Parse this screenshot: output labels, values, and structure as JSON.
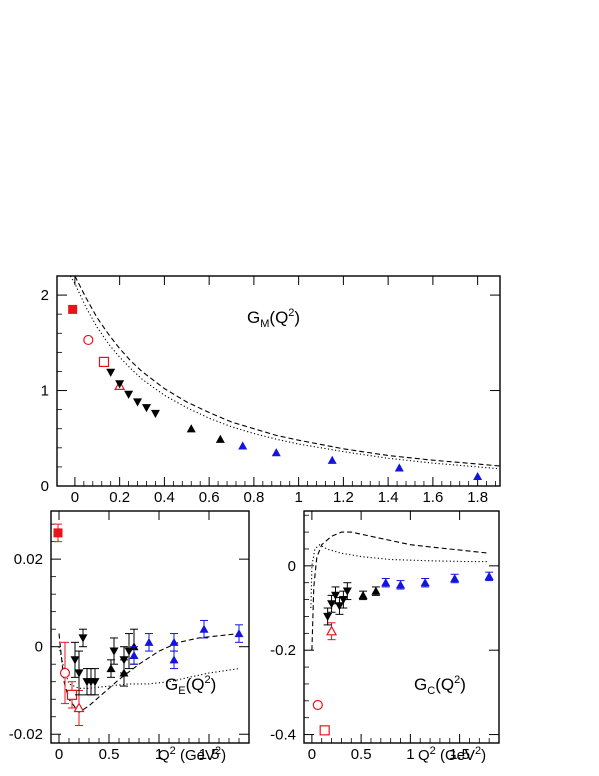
{
  "colors": {
    "black": "#000000",
    "red": "#e8141c",
    "blue": "#1414e0"
  },
  "chart_data": [
    {
      "type": "scatter",
      "title": "",
      "annotation": {
        "main": "G",
        "sub": "M",
        "rest": "(Q",
        "sup": "2",
        "end": ")"
      },
      "xlim": [
        -0.08,
        1.9
      ],
      "ylim": [
        0,
        2.2
      ],
      "xticks": [
        0,
        0.2,
        0.4,
        0.6,
        0.8,
        1,
        1.2,
        1.4,
        1.6,
        1.8
      ],
      "xtick_labels": [
        "0",
        "0.2",
        "0.4",
        "0.6",
        "0.8",
        "1",
        "1.2",
        "1.4",
        "1.6",
        "1.8"
      ],
      "yticks": [
        0,
        1,
        2
      ],
      "ytick_labels": [
        "0",
        "1",
        "2"
      ],
      "series": [
        {
          "marker": "square-filled",
          "color": "red",
          "points": [
            [
              -0.01,
              1.85
            ]
          ]
        },
        {
          "marker": "circle-open",
          "color": "red",
          "points": [
            [
              0.06,
              1.53
            ]
          ]
        },
        {
          "marker": "square-open",
          "color": "red",
          "points": [
            [
              0.13,
              1.3
            ]
          ]
        },
        {
          "marker": "triangle-up-open",
          "color": "red",
          "points": [
            [
              0.2,
              1.05
            ]
          ]
        },
        {
          "marker": "triangle-down-filled",
          "color": "black",
          "points": [
            [
              0.16,
              1.19
            ],
            [
              0.2,
              1.07
            ],
            [
              0.24,
              0.96
            ],
            [
              0.28,
              0.88
            ],
            [
              0.32,
              0.82
            ],
            [
              0.36,
              0.76
            ]
          ]
        },
        {
          "marker": "triangle-up-filled",
          "color": "black",
          "points": [
            [
              0.52,
              0.6
            ],
            [
              0.65,
              0.49
            ]
          ]
        },
        {
          "marker": "triangle-up-filled",
          "color": "blue",
          "points": [
            [
              0.75,
              0.42
            ],
            [
              0.9,
              0.35
            ],
            [
              1.15,
              0.27
            ],
            [
              1.45,
              0.19
            ],
            [
              1.8,
              0.1
            ]
          ]
        }
      ],
      "curves": [
        {
          "style": "dashed",
          "points": [
            [
              0.0,
              2.2
            ],
            [
              0.05,
              1.97
            ],
            [
              0.1,
              1.76
            ],
            [
              0.15,
              1.59
            ],
            [
              0.2,
              1.44
            ],
            [
              0.25,
              1.31
            ],
            [
              0.3,
              1.2
            ],
            [
              0.4,
              1.02
            ],
            [
              0.5,
              0.88
            ],
            [
              0.6,
              0.77
            ],
            [
              0.7,
              0.67
            ],
            [
              0.8,
              0.6
            ],
            [
              0.9,
              0.53
            ],
            [
              1.0,
              0.48
            ],
            [
              1.2,
              0.39
            ],
            [
              1.4,
              0.32
            ],
            [
              1.6,
              0.27
            ],
            [
              1.8,
              0.23
            ],
            [
              1.9,
              0.21
            ]
          ]
        },
        {
          "style": "dotted",
          "points": [
            [
              -0.02,
              2.2
            ],
            [
              0.0,
              2.12
            ],
            [
              0.05,
              1.87
            ],
            [
              0.1,
              1.66
            ],
            [
              0.15,
              1.49
            ],
            [
              0.2,
              1.35
            ],
            [
              0.25,
              1.23
            ],
            [
              0.3,
              1.12
            ],
            [
              0.4,
              0.95
            ],
            [
              0.5,
              0.82
            ],
            [
              0.6,
              0.71
            ],
            [
              0.7,
              0.62
            ],
            [
              0.8,
              0.55
            ],
            [
              0.9,
              0.49
            ],
            [
              1.0,
              0.44
            ],
            [
              1.2,
              0.36
            ],
            [
              1.4,
              0.29
            ],
            [
              1.6,
              0.24
            ],
            [
              1.8,
              0.2
            ],
            [
              1.9,
              0.18
            ]
          ]
        }
      ]
    },
    {
      "type": "scatter",
      "title": "",
      "annotation": {
        "main": "G",
        "sub": "E",
        "rest": "(Q",
        "sup": "2",
        "end": ")"
      },
      "xlabel": {
        "main": "Q",
        "sup": "2",
        "rest": " (GeV",
        "sup2": "2",
        "end": ")"
      },
      "xlim": [
        -0.08,
        1.9
      ],
      "ylim": [
        -0.022,
        0.031
      ],
      "xticks": [
        0,
        0.5,
        1,
        1.5
      ],
      "xtick_labels": [
        "0",
        "0.5",
        "1",
        "1.5"
      ],
      "yticks": [
        -0.02,
        0,
        0.02
      ],
      "ytick_labels": [
        "-0.02",
        "0",
        "0.02"
      ],
      "series": [
        {
          "marker": "square-filled",
          "color": "red",
          "points": [
            [
              -0.01,
              0.026,
              0.002
            ]
          ]
        },
        {
          "marker": "circle-open",
          "color": "red",
          "points": [
            [
              0.06,
              -0.006,
              0.007
            ]
          ]
        },
        {
          "marker": "square-open",
          "color": "red",
          "points": [
            [
              0.13,
              -0.011,
              0.003
            ]
          ]
        },
        {
          "marker": "triangle-up-open",
          "color": "red",
          "points": [
            [
              0.2,
              -0.014,
              0.004
            ]
          ]
        },
        {
          "marker": "triangle-down-filled",
          "color": "black",
          "points": [
            [
              0.16,
              -0.003,
              0.004
            ],
            [
              0.2,
              -0.006,
              0.005
            ],
            [
              0.24,
              0.002,
              0.002
            ],
            [
              0.28,
              -0.008,
              0.003
            ],
            [
              0.32,
              -0.008,
              0.003
            ],
            [
              0.36,
              -0.008,
              0.003
            ],
            [
              0.55,
              -0.001,
              0.003
            ],
            [
              0.65,
              -0.003,
              0.003
            ],
            [
              0.7,
              -0.001,
              0.004
            ]
          ]
        },
        {
          "marker": "triangle-up-filled",
          "color": "black",
          "points": [
            [
              0.52,
              -0.005,
              0.002
            ],
            [
              0.65,
              -0.006,
              0.003
            ],
            [
              0.75,
              0.0,
              0.004
            ]
          ]
        },
        {
          "marker": "triangle-up-filled",
          "color": "blue",
          "points": [
            [
              0.75,
              -0.002,
              0.002
            ],
            [
              0.9,
              0.001,
              0.002
            ],
            [
              1.15,
              -0.003,
              0.002
            ],
            [
              1.15,
              0.001,
              0.002
            ],
            [
              1.45,
              0.004,
              0.002
            ],
            [
              1.8,
              0.003,
              0.002
            ]
          ]
        }
      ],
      "curves": [
        {
          "style": "dashed",
          "points": [
            [
              0.0,
              0.003
            ],
            [
              0.05,
              -0.008
            ],
            [
              0.1,
              -0.012
            ],
            [
              0.2,
              -0.015
            ],
            [
              0.3,
              -0.0135
            ],
            [
              0.4,
              -0.0115
            ],
            [
              0.5,
              -0.0095
            ],
            [
              0.6,
              -0.0075
            ],
            [
              0.8,
              -0.004
            ],
            [
              1.0,
              -0.001
            ],
            [
              1.2,
              0.001
            ],
            [
              1.4,
              0.002
            ],
            [
              1.6,
              0.0025
            ],
            [
              1.8,
              0.003
            ]
          ]
        },
        {
          "style": "dotted",
          "points": [
            [
              0.0,
              0.0
            ],
            [
              0.05,
              -0.005
            ],
            [
              0.1,
              -0.0085
            ],
            [
              0.2,
              -0.0095
            ],
            [
              0.3,
              -0.0095
            ],
            [
              0.5,
              -0.009
            ],
            [
              0.7,
              -0.0085
            ],
            [
              0.9,
              -0.0085
            ],
            [
              1.1,
              -0.008
            ],
            [
              1.3,
              -0.007
            ],
            [
              1.5,
              -0.006
            ],
            [
              1.8,
              -0.005
            ]
          ]
        }
      ]
    },
    {
      "type": "scatter",
      "title": "",
      "annotation": {
        "main": "G",
        "sub": "C",
        "rest": "(Q",
        "sup": "2",
        "end": ")"
      },
      "xlabel": {
        "main": "Q",
        "sup": "2",
        "rest": " (GeV",
        "sup2": "2",
        "end": ")"
      },
      "xlim": [
        -0.08,
        1.9
      ],
      "ylim": [
        -0.42,
        0.13
      ],
      "xticks": [
        0,
        0.5,
        1,
        1.5
      ],
      "xtick_labels": [
        "0",
        "0.5",
        "1",
        "1.5"
      ],
      "yticks": [
        -0.4,
        -0.2,
        0
      ],
      "ytick_labels": [
        "-0.4",
        "-0.2",
        "0"
      ],
      "series": [
        {
          "marker": "circle-open",
          "color": "red",
          "points": [
            [
              0.06,
              -0.33,
              0.0
            ]
          ]
        },
        {
          "marker": "square-open",
          "color": "red",
          "points": [
            [
              0.13,
              -0.39,
              0.0
            ]
          ]
        },
        {
          "marker": "triangle-up-open",
          "color": "red",
          "points": [
            [
              0.2,
              -0.155,
              0.02
            ]
          ]
        },
        {
          "marker": "triangle-down-filled",
          "color": "black",
          "points": [
            [
              0.16,
              -0.12,
              0.02
            ],
            [
              0.2,
              -0.09,
              0.02
            ],
            [
              0.24,
              -0.07,
              0.02
            ],
            [
              0.28,
              -0.095,
              0.02
            ],
            [
              0.32,
              -0.08,
              0.02
            ],
            [
              0.36,
              -0.06,
              0.02
            ]
          ]
        },
        {
          "marker": "triangle-up-filled",
          "color": "black",
          "points": [
            [
              0.52,
              -0.07,
              0.01
            ],
            [
              0.65,
              -0.06,
              0.01
            ]
          ]
        },
        {
          "marker": "triangle-up-filled",
          "color": "blue",
          "points": [
            [
              0.75,
              -0.04,
              0.01
            ],
            [
              0.9,
              -0.045,
              0.01
            ],
            [
              1.15,
              -0.04,
              0.01
            ],
            [
              1.45,
              -0.03,
              0.01
            ],
            [
              1.8,
              -0.025,
              0.01
            ]
          ]
        }
      ],
      "curves": [
        {
          "style": "dashed",
          "points": [
            [
              0.0,
              -0.2
            ],
            [
              0.02,
              -0.05
            ],
            [
              0.05,
              0.02
            ],
            [
              0.1,
              0.05
            ],
            [
              0.2,
              0.07
            ],
            [
              0.3,
              0.08
            ],
            [
              0.4,
              0.08
            ],
            [
              0.6,
              0.07
            ],
            [
              0.8,
              0.06
            ],
            [
              1.0,
              0.05
            ],
            [
              1.2,
              0.045
            ],
            [
              1.4,
              0.04
            ],
            [
              1.6,
              0.035
            ],
            [
              1.8,
              0.03
            ]
          ]
        },
        {
          "style": "dotted",
          "points": [
            [
              -0.01,
              -0.1
            ],
            [
              0.0,
              0.0
            ],
            [
              0.03,
              0.04
            ],
            [
              0.08,
              0.05
            ],
            [
              0.15,
              0.04
            ],
            [
              0.3,
              0.03
            ],
            [
              0.5,
              0.022
            ],
            [
              0.8,
              0.015
            ],
            [
              1.2,
              0.012
            ],
            [
              1.6,
              0.01
            ],
            [
              1.8,
              0.01
            ]
          ]
        }
      ]
    }
  ]
}
